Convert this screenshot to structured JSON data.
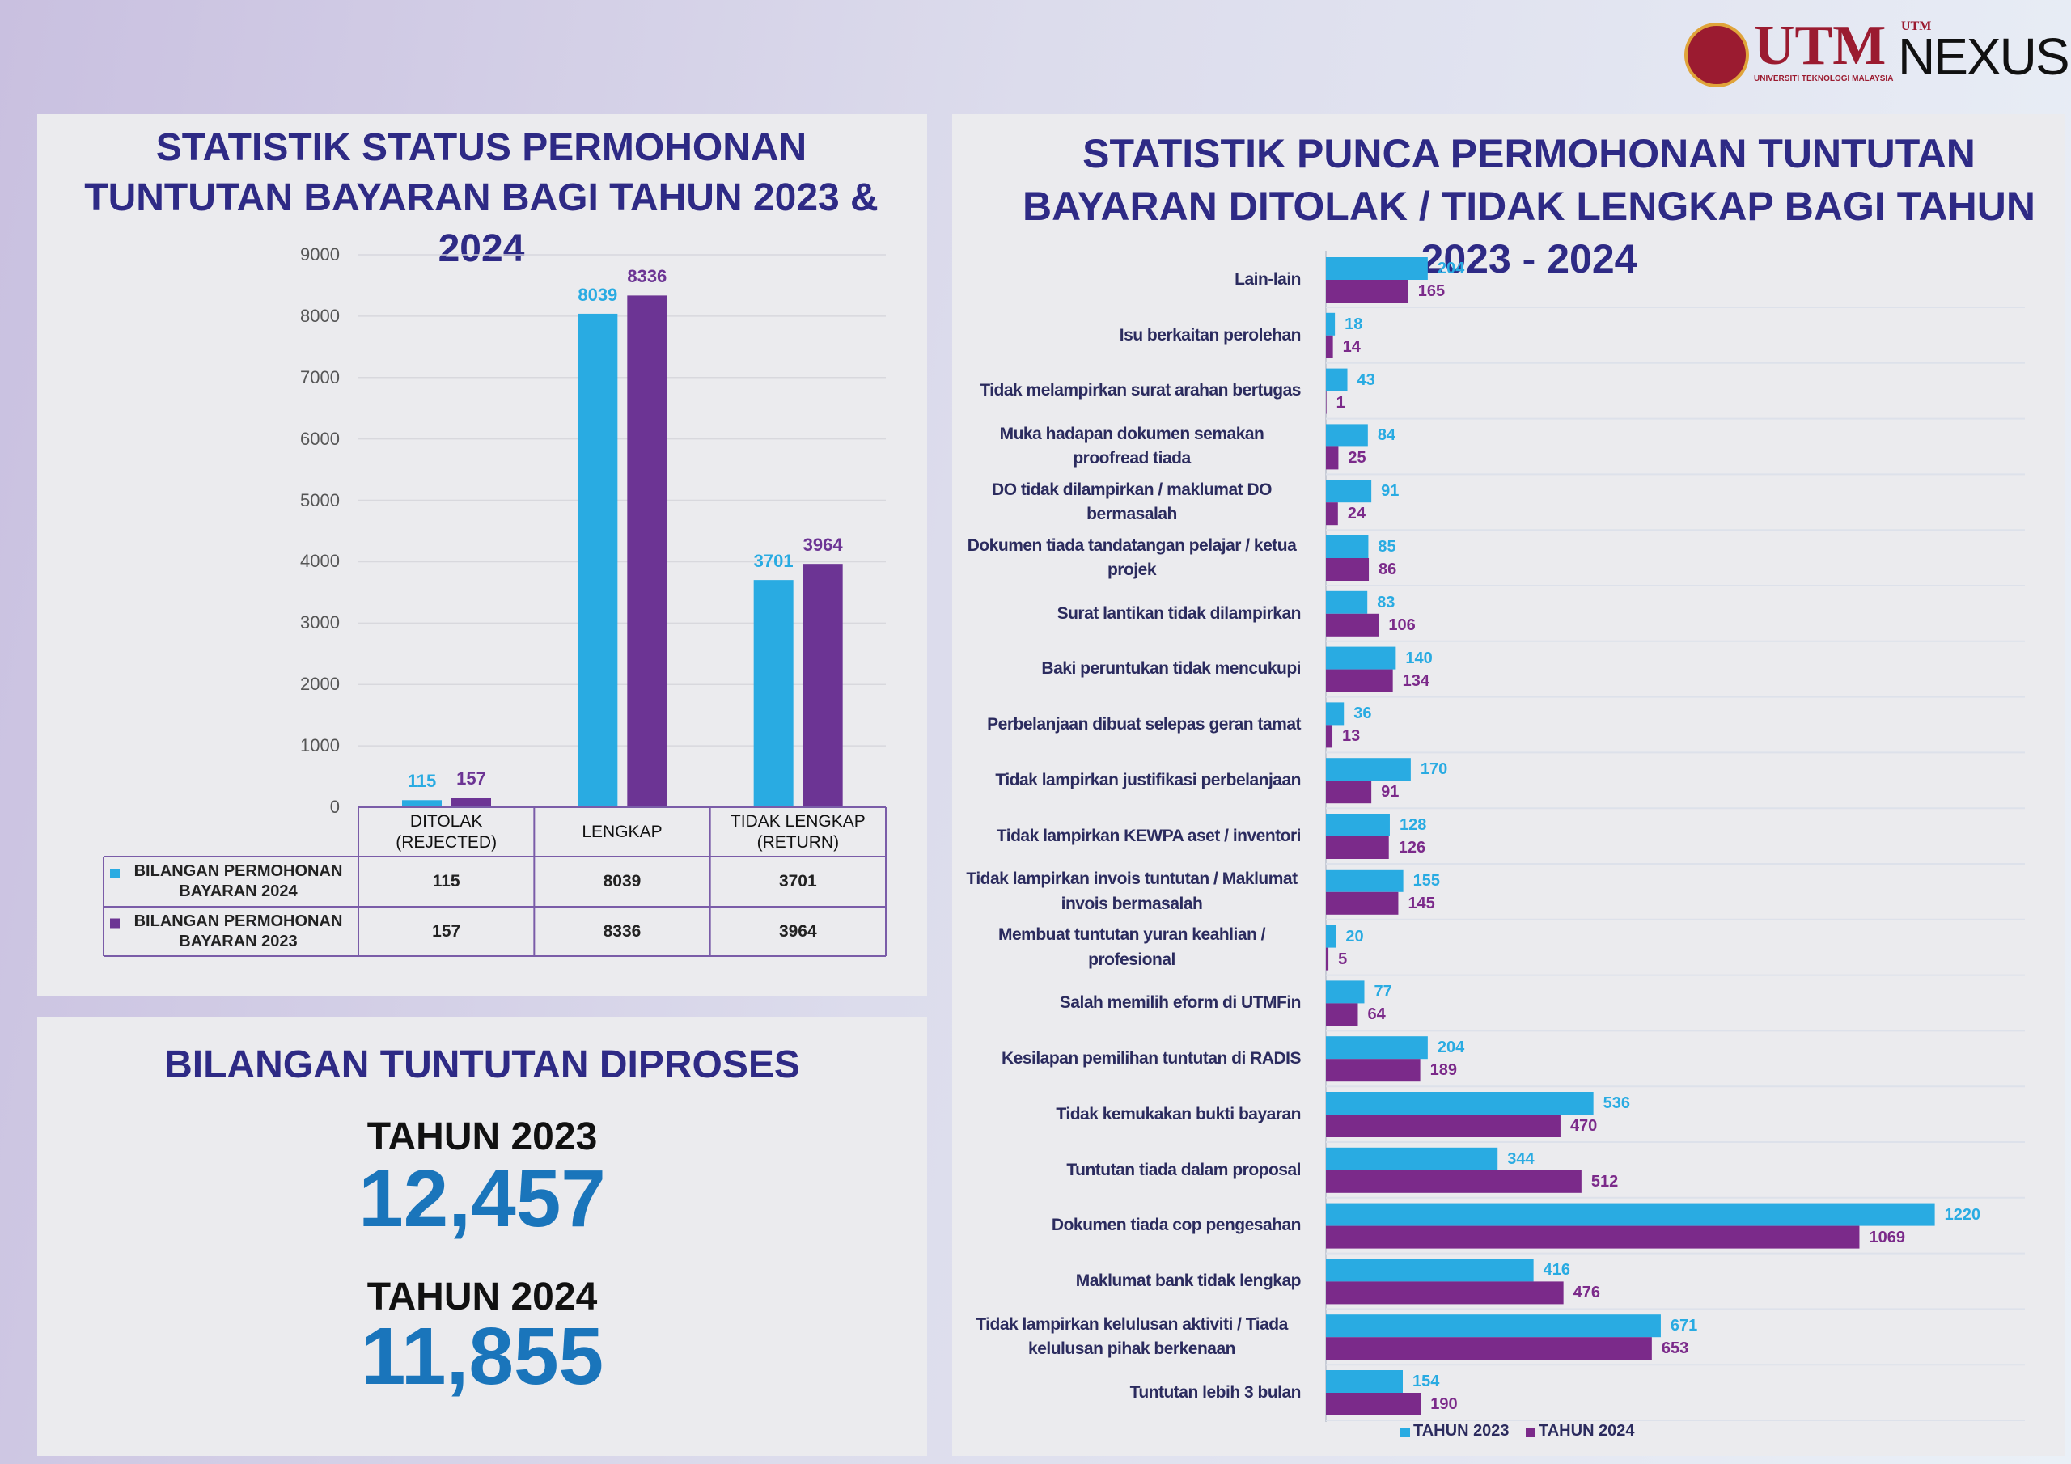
{
  "logo": {
    "name": "UTM",
    "subtitle": "UNIVERSITI TEKNOLOGI MALAYSIA",
    "small": "UTM",
    "product": "NEXUS"
  },
  "chart_data": [
    {
      "type": "bar",
      "title": "STATISTIK STATUS PERMOHONAN TUNTUTAN BAYARAN BAGI TAHUN 2023 & 2024",
      "categories": [
        "DITOLAK (REJECTED)",
        "LENGKAP",
        "TIDAK LENGKAP (RETURN)"
      ],
      "series": [
        {
          "name": "BILANGAN PERMOHONAN BAYARAN 2024",
          "color": "#29abe2",
          "values": [
            115,
            8039,
            3701
          ]
        },
        {
          "name": "BILANGAN PERMOHONAN BAYARAN 2023",
          "color": "#6c3494",
          "values": [
            157,
            8336,
            3964
          ]
        }
      ],
      "ylim": [
        0,
        9000
      ],
      "yticks": [
        0,
        1000,
        2000,
        3000,
        4000,
        5000,
        6000,
        7000,
        8000,
        9000
      ],
      "grid": true
    },
    {
      "type": "hbar",
      "title": "STATISTIK PUNCA PERMOHONAN TUNTUTAN BAYARAN DITOLAK / TIDAK LENGKAP BAGI TAHUN 2023 - 2024",
      "categories": [
        "Lain-lain",
        "Isu berkaitan perolehan",
        "Tidak melampirkan surat arahan bertugas",
        "Muka hadapan dokumen semakan proofread tiada",
        "DO tidak dilampirkan / maklumat DO bermasalah",
        "Dokumen tiada tandatangan pelajar / ketua projek",
        "Surat lantikan tidak dilampirkan",
        "Baki peruntukan tidak mencukupi",
        "Perbelanjaan dibuat selepas geran tamat",
        "Tidak lampirkan justifikasi perbelanjaan",
        "Tidak lampirkan KEWPA aset / inventori",
        "Tidak lampirkan invois tuntutan / Maklumat invois bermasalah",
        "Membuat tuntutan yuran keahlian / profesional",
        "Salah memilih eform di UTMFin",
        "Kesilapan pemilihan tuntutan di RADIS",
        "Tidak kemukakan bukti bayaran",
        "Tuntutan tiada dalam proposal",
        "Dokumen tiada cop pengesahan",
        "Maklumat bank tidak lengkap",
        "Tidak lampirkan kelulusan aktiviti / Tiada kelulusan pihak berkenaan",
        "Tuntutan lebih 3 bulan"
      ],
      "series": [
        {
          "name": "TAHUN 2023",
          "color": "#29abe2",
          "values": [
            204,
            18,
            43,
            84,
            91,
            85,
            83,
            140,
            36,
            170,
            128,
            155,
            20,
            77,
            204,
            536,
            344,
            1220,
            416,
            671,
            154
          ]
        },
        {
          "name": "TAHUN 2024",
          "color": "#7b2a8a",
          "values": [
            165,
            14,
            1,
            25,
            24,
            86,
            106,
            134,
            13,
            91,
            126,
            145,
            5,
            64,
            189,
            470,
            512,
            1069,
            476,
            653,
            190
          ]
        }
      ],
      "legend": "bottom"
    }
  ],
  "summary": {
    "title": "BILANGAN TUNTUTAN DIPROSES",
    "items": [
      {
        "label": "TAHUN 2023",
        "value": "12,457"
      },
      {
        "label": "TAHUN 2024",
        "value": "11,855"
      }
    ]
  }
}
